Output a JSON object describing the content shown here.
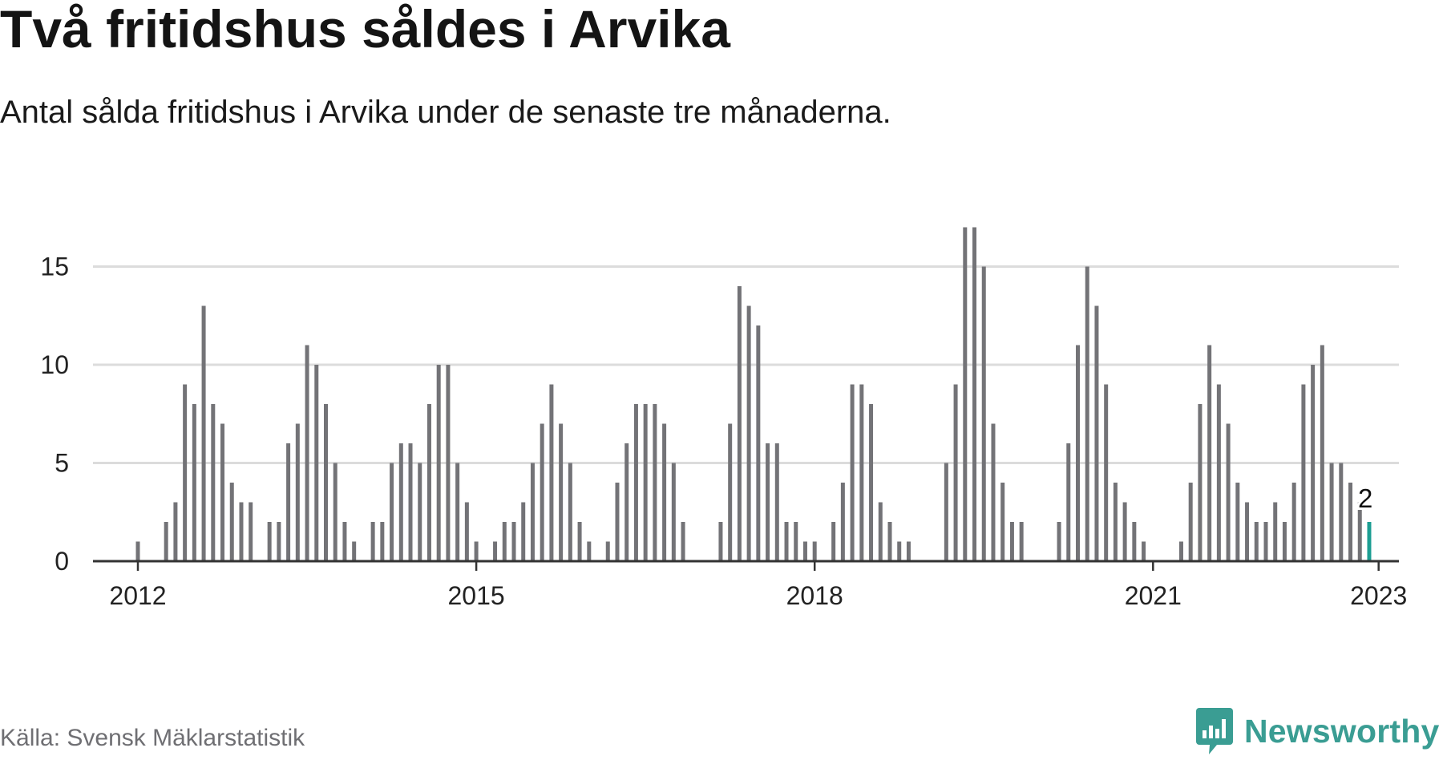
{
  "title": "Två fritidshus såldes i Arvika",
  "subtitle": "Antal sålda fritidshus i Arvika under de senaste tre månaderna.",
  "source": "Källa: Svensk Mäklarstatistik",
  "brand": {
    "name": "Newsworthy",
    "color": "#3a9d93"
  },
  "colors": {
    "bar": "#737377",
    "highlight": "#1d9e93",
    "grid": "#dcdcdc",
    "axis": "#333333"
  },
  "chart_data": {
    "type": "bar",
    "x_start": "2012-01",
    "x_end": "2023-01",
    "values": [
      1,
      0,
      0,
      2,
      3,
      9,
      8,
      13,
      8,
      7,
      4,
      3,
      3,
      0,
      2,
      2,
      6,
      7,
      11,
      10,
      8,
      5,
      2,
      1,
      0,
      2,
      2,
      5,
      6,
      6,
      5,
      8,
      10,
      10,
      5,
      3,
      1,
      0,
      1,
      2,
      2,
      3,
      5,
      7,
      9,
      7,
      5,
      2,
      1,
      0,
      1,
      4,
      6,
      8,
      8,
      8,
      7,
      5,
      2,
      0,
      0,
      0,
      2,
      7,
      14,
      13,
      12,
      6,
      6,
      2,
      2,
      1,
      1,
      0,
      2,
      4,
      9,
      9,
      8,
      3,
      2,
      1,
      1,
      0,
      0,
      0,
      5,
      9,
      17,
      17,
      15,
      7,
      4,
      2,
      2,
      0,
      0,
      0,
      2,
      6,
      11,
      15,
      13,
      9,
      4,
      3,
      2,
      1,
      0,
      0,
      0,
      1,
      4,
      8,
      11,
      9,
      7,
      4,
      3,
      2,
      2,
      3,
      2,
      4,
      9,
      10,
      11,
      5,
      5,
      4,
      3,
      2
    ],
    "highlight_last": true,
    "annotation": "2",
    "yticks": [
      0,
      5,
      10,
      15
    ],
    "xticks": [
      {
        "label": "2012",
        "index": 0
      },
      {
        "label": "2015",
        "index": 36
      },
      {
        "label": "2018",
        "index": 72
      },
      {
        "label": "2021",
        "index": 108
      },
      {
        "label": "2023",
        "index": 132
      }
    ],
    "ylim": [
      0,
      17
    ],
    "grid": true
  }
}
